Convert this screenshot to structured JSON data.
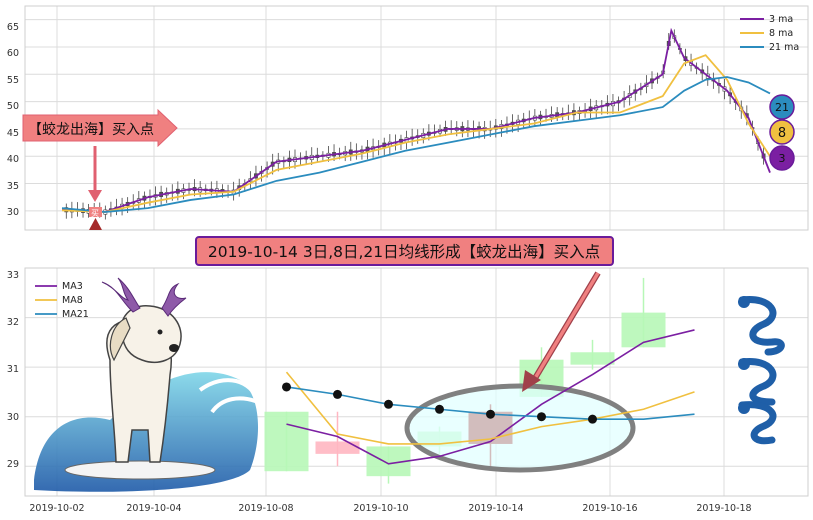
{
  "colors": {
    "ma3": "#7b1fa2",
    "ma8": "#f0c040",
    "ma21": "#2b8cbe",
    "annotation_fill": "#f08080",
    "annotation_border": "#6a1b9a",
    "bull_candle": "#b7f7b7",
    "bear_candle": "#ffb6c1",
    "highlight_candle": "#b22222"
  },
  "top_chart": {
    "legend": [
      {
        "name": "3 ma",
        "color_key": "ma3"
      },
      {
        "name": "8 ma",
        "color_key": "ma8"
      },
      {
        "name": "21 ma",
        "color_key": "ma21"
      }
    ],
    "y_ticks": [
      "65",
      "60",
      "55",
      "50",
      "45",
      "40",
      "35",
      "30"
    ],
    "badges": [
      "21",
      "8",
      "3"
    ],
    "arrow_label": "【蛟龙出海】买入点",
    "marker_label": "买"
  },
  "bottom_chart": {
    "legend": [
      {
        "name": "MA3",
        "color_key": "ma3"
      },
      {
        "name": "MA8",
        "color_key": "ma8"
      },
      {
        "name": "MA21",
        "color_key": "ma21"
      }
    ],
    "y_ticks": [
      "33",
      "32",
      "31",
      "30",
      "29"
    ],
    "x_ticks": [
      "2019-10-02",
      "2019-10-04",
      "2019-10-08",
      "2019-10-10",
      "2019-10-14",
      "2019-10-16",
      "2019-10-18"
    ],
    "banner": "2019-10-14 3日,8日,21日均线形成【蛟龙出海】买入点"
  },
  "chart_data": [
    {
      "type": "line",
      "title": "",
      "xlabel": "",
      "ylabel": "",
      "ylim": [
        26.5,
        67.5
      ],
      "series": [
        {
          "name": "3 ma",
          "x": [
            0,
            10,
            20,
            30,
            40,
            50,
            60,
            70,
            80,
            90,
            100,
            110,
            120,
            130,
            140,
            142,
            145,
            150,
            155,
            160,
            165
          ],
          "values": [
            30.2,
            29.8,
            32.5,
            34,
            33.5,
            39,
            40,
            41,
            43,
            45,
            45,
            47,
            48,
            50,
            55,
            63,
            58,
            55,
            52,
            47,
            37
          ]
        },
        {
          "name": "8 ma",
          "x": [
            0,
            10,
            20,
            30,
            40,
            50,
            60,
            70,
            80,
            90,
            100,
            110,
            120,
            130,
            140,
            145,
            150,
            155,
            160,
            165
          ],
          "values": [
            30.1,
            29.8,
            31.5,
            33,
            33.5,
            37.5,
            39,
            40.5,
            42.5,
            44,
            45,
            46,
            48,
            48,
            51,
            57,
            58.5,
            54,
            46,
            40
          ]
        },
        {
          "name": "21 ma",
          "x": [
            0,
            10,
            20,
            30,
            40,
            50,
            60,
            70,
            80,
            90,
            100,
            110,
            120,
            130,
            140,
            145,
            150,
            155,
            160,
            165
          ],
          "values": [
            30.5,
            29.8,
            30.5,
            32,
            33,
            35.5,
            37,
            39,
            41,
            42.5,
            44,
            45.5,
            46.5,
            47.5,
            49,
            52,
            54,
            54.5,
            53.5,
            51.5
          ]
        }
      ]
    },
    {
      "type": "line",
      "title": "",
      "xlabel": "",
      "ylabel": "",
      "x_labels": [
        "2019-10-02",
        "2019-10-04",
        "2019-10-08",
        "2019-10-10",
        "2019-10-14",
        "2019-10-16",
        "2019-10-18"
      ],
      "ylim": [
        28.4,
        33.0
      ],
      "candles": [
        {
          "x": 2.7,
          "open": 28.9,
          "close": 30.1,
          "low": 28.9,
          "high": 30.1
        },
        {
          "x": 3.3,
          "open": 29.5,
          "close": 29.25,
          "low": 29.0,
          "high": 30.1
        },
        {
          "x": 3.9,
          "open": 28.8,
          "close": 29.4,
          "low": 28.65,
          "high": 29.4
        },
        {
          "x": 4.5,
          "open": 29.4,
          "close": 29.7,
          "low": 29.25,
          "high": 29.8
        },
        {
          "x": 5.1,
          "open": 30.1,
          "close": 29.45,
          "low": 28.95,
          "high": 30.25
        },
        {
          "x": 5.7,
          "open": 30.4,
          "close": 31.15,
          "low": 30.4,
          "high": 31.4
        },
        {
          "x": 6.3,
          "open": 31.05,
          "close": 31.3,
          "low": 30.95,
          "high": 31.55
        },
        {
          "x": 6.9,
          "open": 31.4,
          "close": 32.1,
          "low": 31.4,
          "high": 32.8
        }
      ],
      "series": [
        {
          "name": "MA3",
          "x": [
            2.7,
            3.3,
            3.9,
            4.5,
            5.1,
            5.7,
            6.3,
            6.9,
            7.5
          ],
          "values": [
            29.85,
            29.6,
            29.05,
            29.2,
            29.5,
            30.25,
            30.85,
            31.5,
            31.75
          ]
        },
        {
          "name": "MA8",
          "x": [
            2.7,
            3.3,
            3.9,
            4.5,
            5.1,
            5.7,
            6.3,
            6.9,
            7.5
          ],
          "values": [
            30.9,
            29.65,
            29.45,
            29.45,
            29.55,
            29.8,
            29.95,
            30.15,
            30.5
          ]
        },
        {
          "name": "MA21",
          "x": [
            2.7,
            3.3,
            3.9,
            4.5,
            5.1,
            5.7,
            6.3,
            6.9,
            7.5
          ],
          "values": [
            30.6,
            30.45,
            30.25,
            30.15,
            30.05,
            30.0,
            29.95,
            29.95,
            30.05
          ]
        }
      ]
    }
  ]
}
